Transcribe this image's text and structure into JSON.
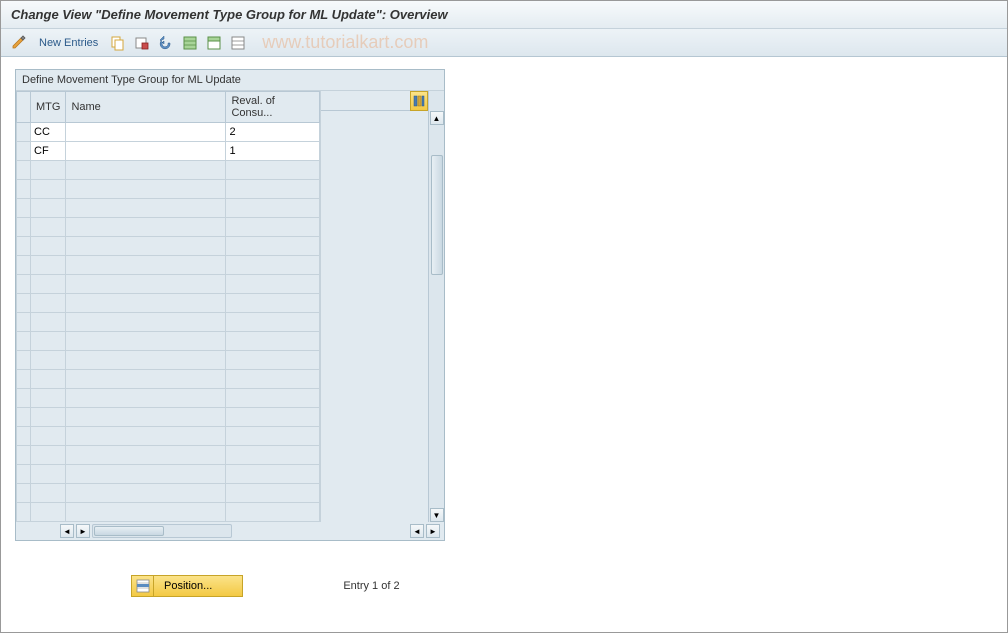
{
  "title": "Change View \"Define Movement Type Group for ML Update\": Overview",
  "toolbar": {
    "new_entries_label": "New Entries",
    "watermark": "www.tutorialkart.com"
  },
  "table": {
    "title": "Define Movement Type Group for ML Update",
    "columns": {
      "mtg": "MTG",
      "name": "Name",
      "reval": "Reval. of Consu..."
    },
    "rows": [
      {
        "mtg": "CC",
        "name": "",
        "reval": "2"
      },
      {
        "mtg": "CF",
        "name": "",
        "reval": "1"
      }
    ],
    "empty_rows": 19
  },
  "footer": {
    "position_label": "Position...",
    "entry_text": "Entry 1 of 2"
  },
  "colors": {
    "panel_bg": "#e1eaf0",
    "border": "#b8c8d4",
    "filled_bg": "#ffffff",
    "accent": "#f3c944"
  }
}
